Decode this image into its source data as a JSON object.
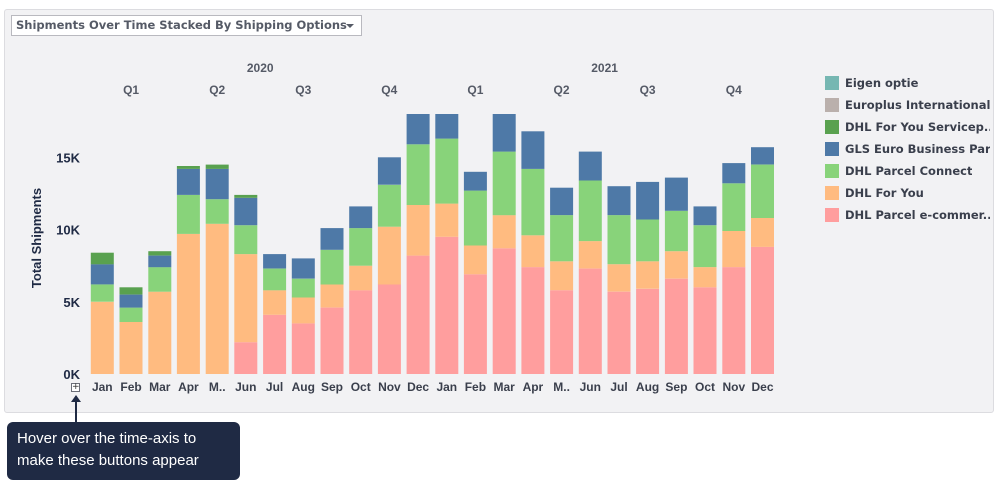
{
  "dropdown": {
    "label": "Shipments Over Time Stacked By Shipping Options"
  },
  "annotation": {
    "text": "Hover over the time-axis to make these buttons appear"
  },
  "expand_button": {
    "label": "+"
  },
  "chart_data": {
    "type": "bar",
    "stacked": true,
    "ylabel": "Total Shipments",
    "ylim": [
      0,
      18000
    ],
    "yticks": [
      "0K",
      "5K",
      "10K",
      "15K"
    ],
    "ytick_values": [
      0,
      5000,
      10000,
      15000
    ],
    "years": [
      {
        "label": "2020",
        "quarters": [
          "Q1",
          "Q2",
          "Q3",
          "Q4"
        ]
      },
      {
        "label": "2021",
        "quarters": [
          "Q1",
          "Q2",
          "Q3",
          "Q4"
        ]
      }
    ],
    "categories": [
      "Jan",
      "Feb",
      "Mar",
      "Apr",
      "M..",
      "Jun",
      "Jul",
      "Aug",
      "Sep",
      "Oct",
      "Nov",
      "Dec",
      "Jan",
      "Feb",
      "Mar",
      "Apr",
      "M..",
      "Jun",
      "Jul",
      "Aug",
      "Sep",
      "Oct",
      "Nov",
      "Dec"
    ],
    "series": [
      {
        "name": "DHL Parcel e-commer...",
        "color": "#ff9e9e",
        "values": [
          0,
          0,
          0,
          0,
          0,
          2200,
          4100,
          3500,
          4600,
          5800,
          6200,
          8200,
          9500,
          6900,
          8700,
          7400,
          5800,
          7300,
          5700,
          5900,
          6600,
          6000,
          7400,
          8800
        ]
      },
      {
        "name": "DHL For You",
        "color": "#ffbb80",
        "values": [
          5000,
          3600,
          5700,
          9700,
          10400,
          6100,
          1700,
          1800,
          1600,
          1700,
          4000,
          3500,
          2300,
          2000,
          2300,
          2200,
          2000,
          1900,
          1900,
          1900,
          1900,
          1400,
          2500,
          2000
        ]
      },
      {
        "name": "DHL Parcel Connect",
        "color": "#88d37a",
        "values": [
          1200,
          1000,
          1700,
          2700,
          1700,
          2000,
          1500,
          1300,
          2400,
          2600,
          2900,
          4200,
          4500,
          3800,
          4400,
          4600,
          3200,
          4200,
          3400,
          2900,
          2800,
          2900,
          3300,
          3700
        ]
      },
      {
        "name": "GLS Euro Business Par...",
        "color": "#4e79a7",
        "values": [
          1400,
          900,
          800,
          1800,
          2100,
          1900,
          1000,
          1400,
          1500,
          1500,
          1900,
          2100,
          1700,
          1300,
          2600,
          2600,
          1900,
          2000,
          2000,
          2600,
          2300,
          1300,
          1400,
          1200
        ]
      },
      {
        "name": "DHL For You Servicep...",
        "color": "#59a14f",
        "values": [
          800,
          500,
          300,
          200,
          300,
          200,
          0,
          0,
          0,
          0,
          0,
          0,
          0,
          0,
          0,
          0,
          0,
          0,
          0,
          0,
          0,
          0,
          0,
          0
        ]
      },
      {
        "name": "Europlus International",
        "color": "#bab0ac",
        "values": [
          0,
          0,
          0,
          0,
          0,
          0,
          0,
          0,
          0,
          0,
          0,
          0,
          0,
          0,
          0,
          0,
          0,
          0,
          0,
          0,
          0,
          0,
          0,
          0
        ]
      },
      {
        "name": "Eigen optie",
        "color": "#76b7b2",
        "values": [
          0,
          0,
          0,
          0,
          0,
          0,
          0,
          0,
          0,
          0,
          0,
          0,
          0,
          0,
          0,
          0,
          0,
          0,
          0,
          0,
          0,
          0,
          0,
          0
        ]
      }
    ],
    "legend_order": [
      "Eigen optie",
      "Europlus International",
      "DHL For You Servicep...",
      "GLS Euro Business Par...",
      "DHL Parcel Connect",
      "DHL For You",
      "DHL Parcel e-commer..."
    ],
    "legend_position": "right",
    "grid": false
  }
}
